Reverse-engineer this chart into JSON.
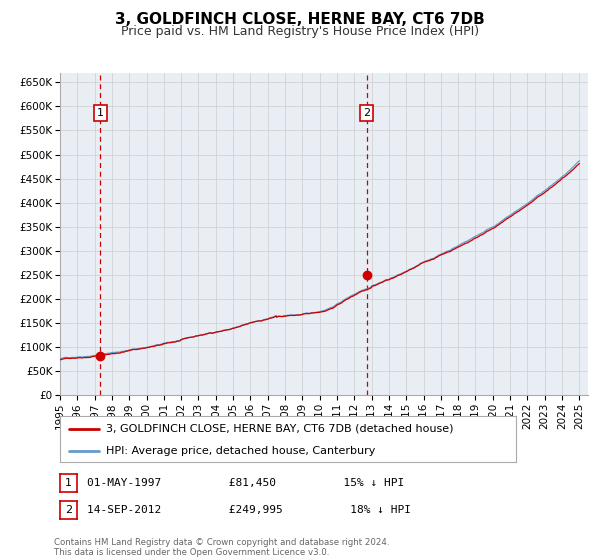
{
  "title": "3, GOLDFINCH CLOSE, HERNE BAY, CT6 7DB",
  "subtitle": "Price paid vs. HM Land Registry's House Price Index (HPI)",
  "yticks": [
    0,
    50000,
    100000,
    150000,
    200000,
    250000,
    300000,
    350000,
    400000,
    450000,
    500000,
    550000,
    600000,
    650000
  ],
  "ylim": [
    0,
    670000
  ],
  "xlim_start": 1995.0,
  "xlim_end": 2025.5,
  "sale1_date": 1997.33,
  "sale1_price": 81450,
  "sale1_label": "1",
  "sale2_date": 2012.71,
  "sale2_price": 249995,
  "sale2_label": "2",
  "red_line_color": "#cc0000",
  "blue_line_color": "#6699cc",
  "grid_color": "#cccccc",
  "background_color": "#e8eef4",
  "legend_label_red": "3, GOLDFINCH CLOSE, HERNE BAY, CT6 7DB (detached house)",
  "legend_label_blue": "HPI: Average price, detached house, Canterbury",
  "footer1": "Contains HM Land Registry data © Crown copyright and database right 2024.",
  "footer2": "This data is licensed under the Open Government Licence v3.0.",
  "title_fontsize": 11,
  "subtitle_fontsize": 9,
  "tick_fontsize": 7.5,
  "legend_fontsize": 8,
  "annotation_fontsize": 8
}
